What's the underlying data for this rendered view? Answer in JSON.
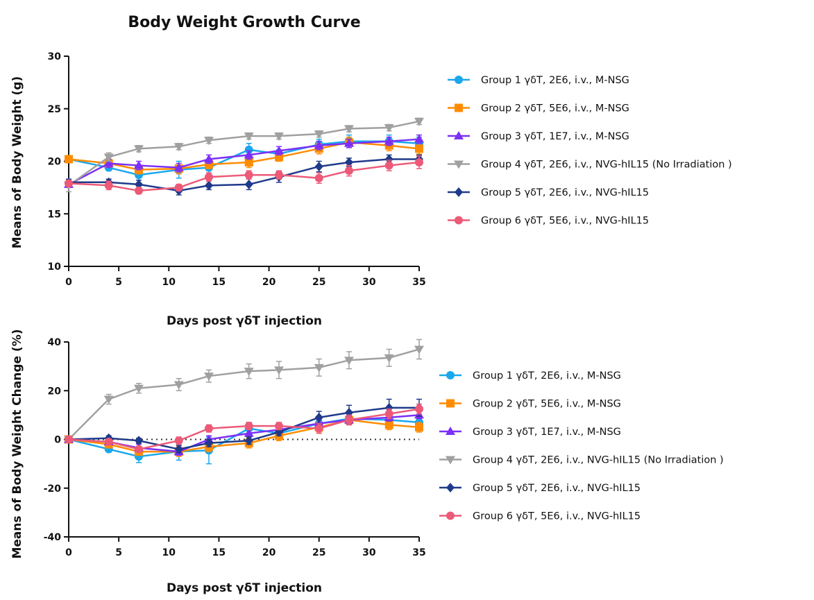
{
  "title": "Body Weight Growth Curve",
  "colors": {
    "group1": "#1aa7ec",
    "group2": "#ff8c00",
    "group3": "#7b2ff7",
    "group4": "#a0a0a0",
    "group5": "#1f3a8a",
    "group6": "#ec5a78"
  },
  "chart_data": [
    {
      "type": "line",
      "title": "Body Weight Growth Curve",
      "xlabel": "Days post γδT injection",
      "ylabel": "Means of Body Weight (g)",
      "x": [
        0,
        4,
        7,
        11,
        14,
        18,
        21,
        25,
        28,
        32,
        35
      ],
      "xlim": [
        0,
        35
      ],
      "ylim": [
        10,
        30
      ],
      "xticks": [
        "0",
        "5",
        "10",
        "15",
        "20",
        "25",
        "30",
        "35"
      ],
      "yticks": [
        "10",
        "15",
        "20",
        "25",
        "30"
      ],
      "grid": false,
      "legend": "right",
      "series": [
        {
          "name": "Group 1 γδT, 2E6, i.v., M-NSG",
          "marker": "circle",
          "color": "#1aa7ec",
          "values": [
            20.2,
            19.4,
            18.7,
            19.2,
            19.4,
            21.1,
            20.7,
            21.6,
            21.9,
            21.9,
            21.7
          ],
          "errors": [
            0.2,
            0.3,
            0.5,
            0.8,
            0.5,
            0.6,
            0.4,
            0.5,
            0.6,
            0.6,
            0.6
          ]
        },
        {
          "name": "Group 2 γδT, 5E6, i.v., M-NSG",
          "marker": "square",
          "color": "#ff8c00",
          "values": [
            20.2,
            19.8,
            19.2,
            19.3,
            19.7,
            19.9,
            20.4,
            21.2,
            21.8,
            21.5,
            21.2
          ],
          "errors": [
            0.2,
            0.3,
            0.4,
            0.5,
            0.4,
            0.5,
            0.4,
            0.5,
            0.5,
            0.5,
            0.5
          ]
        },
        {
          "name": "Group 3 γδT, 1E7, i.v., M-NSG",
          "marker": "triangle-up",
          "color": "#7b2ff7",
          "values": [
            17.8,
            19.8,
            19.6,
            19.4,
            20.2,
            20.6,
            21.0,
            21.5,
            21.7,
            21.9,
            22.1
          ],
          "errors": [
            0.3,
            0.4,
            0.4,
            0.4,
            0.4,
            0.4,
            0.4,
            0.4,
            0.4,
            0.4,
            0.4
          ]
        },
        {
          "name": "Group 4 γδT, 2E6, i.v., NVG-hIL15 (No Irradiation )",
          "marker": "triangle-down",
          "color": "#a0a0a0",
          "values": [
            17.7,
            20.4,
            21.2,
            21.4,
            22.0,
            22.4,
            22.4,
            22.6,
            23.1,
            23.2,
            23.8
          ],
          "errors": [
            0.6,
            0.4,
            0.3,
            0.3,
            0.3,
            0.3,
            0.3,
            0.3,
            0.3,
            0.3,
            0.3
          ]
        },
        {
          "name": "Group 5 γδT, 2E6, i.v., NVG-hIL15",
          "marker": "diamond",
          "color": "#1f3a8a",
          "values": [
            18.0,
            18.0,
            17.8,
            17.2,
            17.7,
            17.8,
            18.5,
            19.5,
            19.9,
            20.2,
            20.2
          ],
          "errors": [
            0.3,
            0.3,
            0.4,
            0.4,
            0.4,
            0.5,
            0.5,
            0.5,
            0.4,
            0.4,
            0.4
          ]
        },
        {
          "name": "Group 6 γδT, 5E6, i.v., NVG-hIL15",
          "marker": "circle",
          "color": "#ec5a78",
          "values": [
            17.9,
            17.7,
            17.2,
            17.5,
            18.5,
            18.7,
            18.7,
            18.4,
            19.1,
            19.6,
            19.9
          ],
          "errors": [
            0.3,
            0.4,
            0.3,
            0.3,
            0.4,
            0.4,
            0.4,
            0.5,
            0.5,
            0.5,
            0.6
          ]
        }
      ]
    },
    {
      "type": "line",
      "title": "",
      "xlabel": "Days post γδT injection",
      "ylabel": "Means of Body Weight Change (%)",
      "x": [
        0,
        4,
        7,
        11,
        14,
        18,
        21,
        25,
        28,
        32,
        35
      ],
      "xlim": [
        0,
        35
      ],
      "ylim": [
        -40,
        40
      ],
      "xticks": [
        "0",
        "5",
        "10",
        "15",
        "20",
        "25",
        "30",
        "35"
      ],
      "yticks": [
        "-40",
        "-20",
        "0",
        "20",
        "40"
      ],
      "reference_line": 0,
      "grid": false,
      "legend": "right",
      "series": [
        {
          "name": "Group 1 γδT, 2E6, i.v., M-NSG",
          "marker": "circle",
          "color": "#1aa7ec",
          "values": [
            0,
            -4,
            -7,
            -5,
            -4.5,
            4.5,
            2.5,
            6.5,
            8.5,
            8,
            7
          ],
          "errors": [
            0.5,
            1.2,
            2.5,
            3.5,
            5.5,
            2.5,
            2,
            2.5,
            2.5,
            2.5,
            2.5
          ]
        },
        {
          "name": "Group 2 γδT, 5E6, i.v., M-NSG",
          "marker": "square",
          "color": "#ff8c00",
          "values": [
            0,
            -2,
            -5,
            -5,
            -3,
            -1.5,
            1.5,
            5,
            8,
            6,
            5
          ],
          "errors": [
            0.5,
            1,
            1.5,
            2,
            2,
            2,
            2,
            2,
            2,
            2,
            2
          ]
        },
        {
          "name": "Group 3 γδT, 1E7, i.v., M-NSG",
          "marker": "triangle-up",
          "color": "#7b2ff7",
          "values": [
            0,
            -1,
            -3.5,
            -5,
            0,
            2.5,
            4,
            6.5,
            8,
            9,
            10
          ],
          "errors": [
            0.5,
            1,
            1.5,
            1.5,
            1.5,
            1.5,
            1.5,
            1.5,
            1.5,
            1.5,
            1.5
          ]
        },
        {
          "name": "Group 4 γδT, 2E6, i.v., NVG-hIL15 (No Irradiation )",
          "marker": "triangle-down",
          "color": "#a0a0a0",
          "values": [
            0,
            16.5,
            21,
            22.5,
            26,
            28,
            28.5,
            29.5,
            32.5,
            33.5,
            37
          ],
          "errors": [
            0.5,
            2,
            2,
            2.5,
            2.5,
            3,
            3.5,
            3.5,
            3.5,
            3.5,
            4
          ]
        },
        {
          "name": "Group 5 γδT, 2E6, i.v., NVG-hIL15",
          "marker": "diamond",
          "color": "#1f3a8a",
          "values": [
            0,
            0.5,
            -0.5,
            -4,
            -1.5,
            -0.5,
            3,
            9,
            11,
            13,
            13
          ],
          "errors": [
            0.5,
            1,
            1,
            1.5,
            1.5,
            1.5,
            1.5,
            2.5,
            3,
            3.5,
            3.5
          ]
        },
        {
          "name": "Group 6 γδT, 5E6, i.v., NVG-hIL15",
          "marker": "circle",
          "color": "#ec5a78",
          "values": [
            0,
            -1,
            -4,
            -0.5,
            4.5,
            5.5,
            5.5,
            4.5,
            8,
            10.5,
            12.5
          ],
          "errors": [
            0.5,
            1,
            1,
            1.5,
            1.5,
            1.5,
            1.5,
            2,
            2,
            2,
            2
          ]
        }
      ]
    }
  ]
}
